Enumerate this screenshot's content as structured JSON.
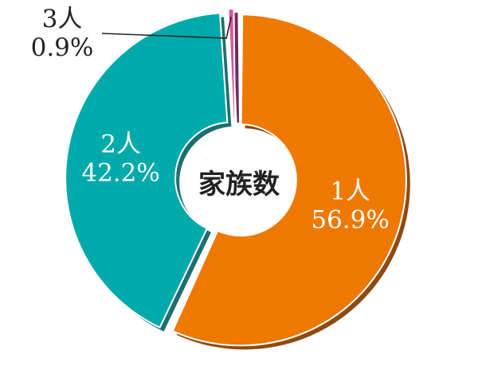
{
  "chart_data": {
    "type": "pie",
    "title": "",
    "center_label": "家族数",
    "categories": [
      "1人",
      "2人",
      "3人"
    ],
    "values": [
      56.9,
      42.2,
      0.9
    ],
    "value_labels": [
      "56.9%",
      "42.2%",
      "0.9%"
    ],
    "colors": [
      "#ee7800",
      "#00aaaa",
      "#e0559a"
    ],
    "shadow_colors": [
      "#8f4a10",
      "#1d6f70",
      "#6f2a5a"
    ],
    "label_colors": [
      "#ffffff",
      "#ffffff",
      "#222222"
    ],
    "legend": "none",
    "style": "donut"
  }
}
